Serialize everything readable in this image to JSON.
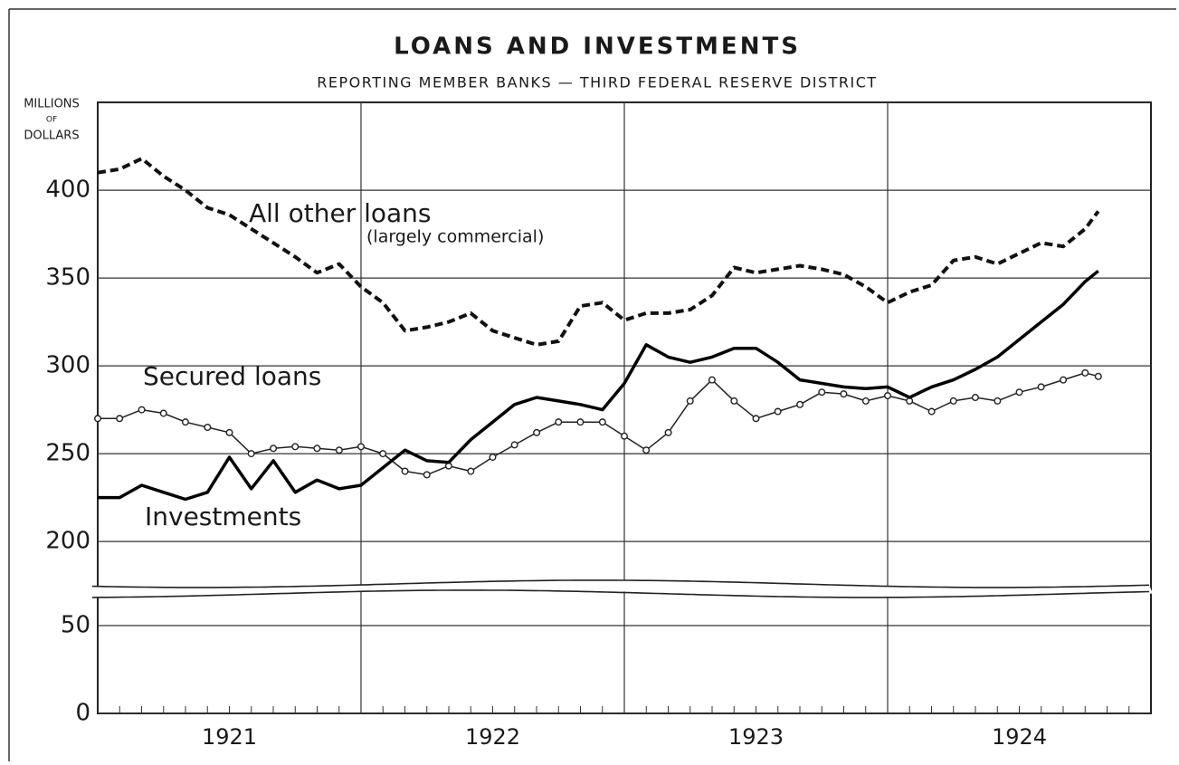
{
  "chart_data": {
    "type": "line",
    "title": "LOANS AND INVESTMENTS",
    "subtitle": "REPORTING MEMBER BANKS — THIRD FEDERAL RESERVE DISTRICT",
    "y_label": [
      "MILLIONS",
      "OF",
      "DOLLARS"
    ],
    "year_labels": [
      "1921",
      "1922",
      "1923",
      "1924"
    ],
    "xlim": [
      1921,
      1925
    ],
    "xgrid": [
      1922,
      1923,
      1924
    ],
    "ylim": [
      0,
      450
    ],
    "ybreak": [
      65,
      180
    ],
    "yticks": [
      0,
      50,
      200,
      250,
      300,
      350,
      400
    ],
    "grid": true,
    "x": [
      1921,
      1921.083,
      1921.167,
      1921.25,
      1921.333,
      1921.417,
      1921.5,
      1921.583,
      1921.667,
      1921.75,
      1921.833,
      1921.917,
      1922,
      1922.083,
      1922.167,
      1922.25,
      1922.333,
      1922.417,
      1922.5,
      1922.583,
      1922.667,
      1922.75,
      1922.833,
      1922.917,
      1923,
      1923.083,
      1923.167,
      1923.25,
      1923.333,
      1923.417,
      1923.5,
      1923.583,
      1923.667,
      1923.75,
      1923.833,
      1923.917,
      1924,
      1924.083,
      1924.167,
      1924.25,
      1924.333,
      1924.417,
      1924.5,
      1924.583,
      1924.667,
      1924.75,
      1924.8
    ],
    "series": [
      {
        "name": "All other loans",
        "note": "(largely commercial)",
        "style": "dashed",
        "color": "#111111",
        "values": [
          410,
          412,
          418,
          408,
          400,
          390,
          386,
          378,
          370,
          362,
          353,
          358,
          345,
          336,
          320,
          322,
          325,
          330,
          320,
          316,
          312,
          314,
          334,
          336,
          326,
          330,
          330,
          332,
          340,
          356,
          353,
          355,
          357,
          355,
          352,
          345,
          336,
          342,
          346,
          360,
          362,
          358,
          364,
          370,
          368,
          378,
          388
        ]
      },
      {
        "name": "Secured loans",
        "style": "circles",
        "color": "#222222",
        "values": [
          270,
          270,
          275,
          273,
          268,
          265,
          262,
          250,
          253,
          254,
          253,
          252,
          254,
          250,
          240,
          238,
          243,
          240,
          248,
          255,
          262,
          268,
          268,
          268,
          260,
          252,
          262,
          280,
          292,
          280,
          270,
          274,
          278,
          285,
          284,
          280,
          283,
          280,
          274,
          280,
          282,
          280,
          285,
          288,
          292,
          296,
          294
        ]
      },
      {
        "name": "Investments",
        "style": "solid",
        "color": "#000000",
        "values": [
          225,
          225,
          232,
          228,
          224,
          228,
          248,
          230,
          246,
          228,
          235,
          230,
          232,
          242,
          252,
          246,
          245,
          258,
          268,
          278,
          282,
          280,
          278,
          275,
          290,
          312,
          305,
          302,
          305,
          310,
          310,
          302,
          292,
          290,
          288,
          287,
          288,
          282,
          288,
          292,
          298,
          305,
          315,
          325,
          335,
          348,
          354
        ]
      }
    ]
  }
}
